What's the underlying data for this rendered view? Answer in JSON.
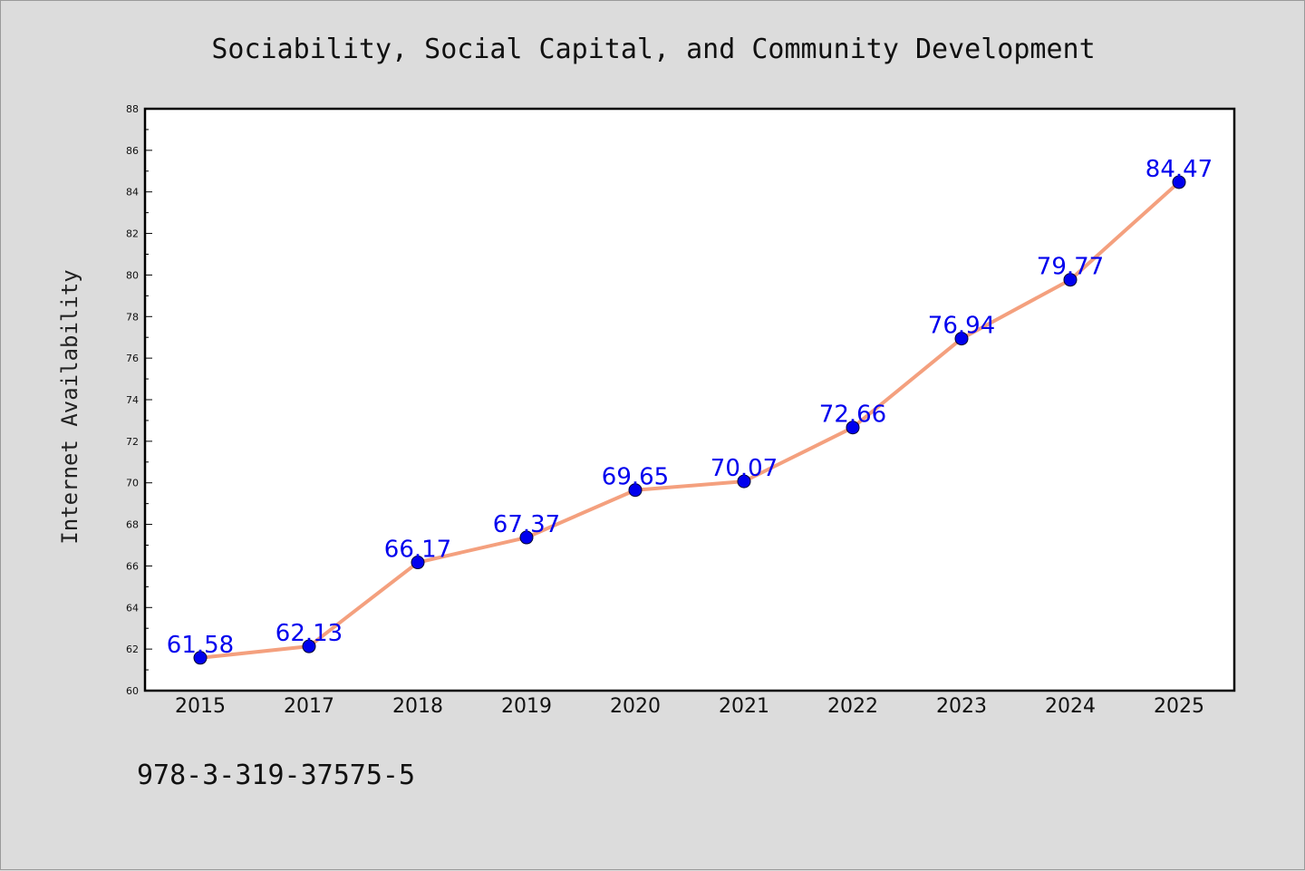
{
  "chart_data": {
    "type": "line",
    "title": "Sociability, Social Capital, and Community Development",
    "xlabel": "",
    "ylabel": "Internet Availability",
    "categories": [
      "2015",
      "2017",
      "2018",
      "2019",
      "2020",
      "2021",
      "2022",
      "2023",
      "2024",
      "2025"
    ],
    "series": [
      {
        "values": [
          61.58,
          62.13,
          66.17,
          67.37,
          69.65,
          70.07,
          72.66,
          76.94,
          79.77,
          84.47
        ],
        "labels": [
          "61.58",
          "62.13",
          "66.17",
          "67.37",
          "69.65",
          "70.07",
          "72.66",
          "76.94",
          "79.77",
          "84.47"
        ]
      }
    ],
    "ylim": [
      60,
      88
    ],
    "yticks": [
      "60",
      "62",
      "64",
      "66",
      "68",
      "70",
      "72",
      "74",
      "76",
      "78",
      "80",
      "82",
      "84",
      "86",
      "88"
    ],
    "grid": false,
    "legend": "none",
    "colors": {
      "line": "#f4a07e",
      "marker": "#0000ee",
      "label": "#0000ee",
      "plot_background": "#ffffff",
      "page_background": "#dcdcdc"
    }
  },
  "footnote": "978-3-319-37575-5"
}
